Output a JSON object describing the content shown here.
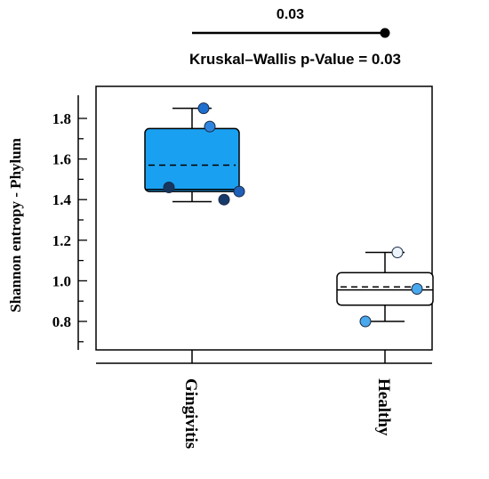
{
  "chart_data": {
    "type": "box",
    "title": "Kruskal–Wallis p-Value = 0.03",
    "ylabel": "Shannon entropy - Phylum",
    "xlabel": "",
    "ylim": [
      0.65,
      1.9
    ],
    "yticks": [
      0.8,
      1.0,
      1.2,
      1.4,
      1.6,
      1.8
    ],
    "ytick_labels": [
      "0.8",
      "1.0",
      "1.2",
      "1.4",
      "1.6",
      "1.8"
    ],
    "categories": [
      "Gingivitis",
      "Healthy"
    ],
    "boxes": [
      {
        "group": "Gingivitis",
        "fill": "#1aa0f0",
        "whisker_low": 1.39,
        "q1": 1.44,
        "median": 1.45,
        "mean": 1.57,
        "q3": 1.75,
        "whisker_high": 1.85,
        "points": [
          {
            "value": 1.85,
            "color": "#1f6fd0"
          },
          {
            "value": 1.76,
            "color": "#2f86e0"
          },
          {
            "value": 1.46,
            "color": "#17365e"
          },
          {
            "value": 1.44,
            "color": "#1f60b8"
          },
          {
            "value": 1.4,
            "color": "#173a6a"
          }
        ]
      },
      {
        "group": "Healthy",
        "fill": "#ffffff",
        "whisker_low": 0.8,
        "q1": 0.88,
        "median": 0.955,
        "mean": 0.97,
        "q3": 1.04,
        "whisker_high": 1.14,
        "points": [
          {
            "value": 1.14,
            "color": "#eef4fb"
          },
          {
            "value": 0.96,
            "color": "#4aa8ec"
          },
          {
            "value": 0.8,
            "color": "#4aa8ec"
          }
        ]
      }
    ],
    "significance": {
      "label": "0.03",
      "from": "Gingivitis",
      "to": "Healthy"
    }
  }
}
